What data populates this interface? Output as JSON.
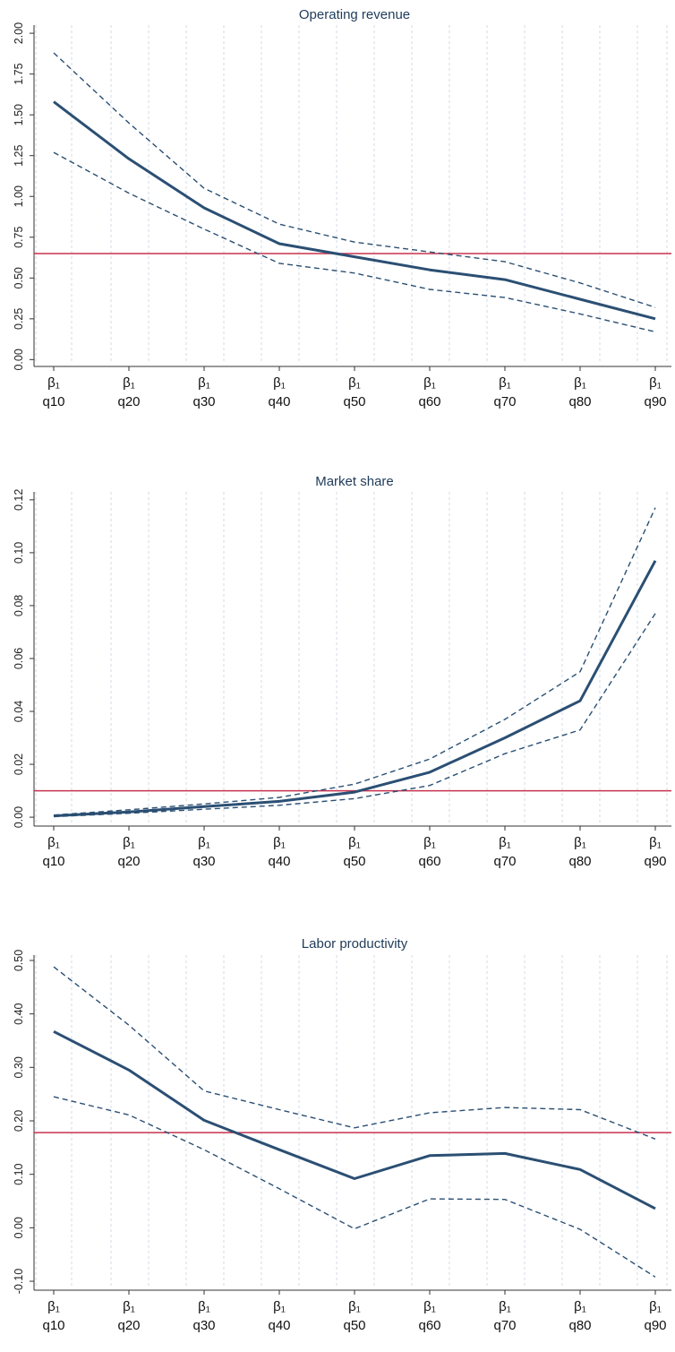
{
  "colors": {
    "estimate": "#2b4f73",
    "ci": "#2b4f73",
    "reference": "#c8324f",
    "grid": "#d0dbe6",
    "axis": "#333333"
  },
  "chart_data": [
    {
      "type": "line",
      "title": "Operating revenue",
      "categories": [
        "q10",
        "q20",
        "q30",
        "q40",
        "q50",
        "q60",
        "q70",
        "q80",
        "q90"
      ],
      "tick_symbol": "β₁",
      "ylim": [
        -0.02,
        2.05
      ],
      "yticks": [
        0.0,
        0.25,
        0.5,
        0.75,
        1.0,
        1.25,
        1.5,
        1.75,
        2.0
      ],
      "ytick_labels": [
        "0.00",
        "0.25",
        "0.50",
        "0.75",
        "1.00",
        "1.25",
        "1.50",
        "1.75",
        "2.00"
      ],
      "reference_line": 0.65,
      "grid": "vertical-dashed",
      "series": [
        {
          "role": "estimate",
          "style": "solid",
          "values": [
            1.58,
            1.23,
            0.93,
            0.71,
            0.63,
            0.55,
            0.49,
            0.37,
            0.25
          ]
        },
        {
          "role": "upper",
          "style": "dashed",
          "values": [
            1.88,
            1.45,
            1.05,
            0.83,
            0.72,
            0.66,
            0.6,
            0.47,
            0.32
          ]
        },
        {
          "role": "lower",
          "style": "dashed",
          "values": [
            1.27,
            1.02,
            0.8,
            0.59,
            0.53,
            0.43,
            0.38,
            0.28,
            0.17
          ]
        }
      ]
    },
    {
      "type": "line",
      "title": "Market share",
      "categories": [
        "q10",
        "q20",
        "q30",
        "q40",
        "q50",
        "q60",
        "q70",
        "q80",
        "q90"
      ],
      "tick_symbol": "β₁",
      "ylim": [
        -0.002,
        0.123
      ],
      "yticks": [
        0.0,
        0.02,
        0.04,
        0.06,
        0.08,
        0.1,
        0.12
      ],
      "ytick_labels": [
        "0.00",
        "0.02",
        "0.04",
        "0.06",
        "0.08",
        "0.10",
        "0.12"
      ],
      "reference_line": 0.01,
      "grid": "vertical-dashed",
      "series": [
        {
          "role": "estimate",
          "style": "solid",
          "values": [
            0.0005,
            0.002,
            0.004,
            0.006,
            0.0095,
            0.017,
            0.03,
            0.044,
            0.097
          ]
        },
        {
          "role": "upper",
          "style": "dashed",
          "values": [
            0.0008,
            0.0028,
            0.005,
            0.0075,
            0.0125,
            0.022,
            0.037,
            0.055,
            0.117
          ]
        },
        {
          "role": "lower",
          "style": "dashed",
          "values": [
            0.0002,
            0.0015,
            0.003,
            0.0045,
            0.007,
            0.012,
            0.024,
            0.033,
            0.077
          ]
        }
      ]
    },
    {
      "type": "line",
      "title": "Labor productivity",
      "categories": [
        "q10",
        "q20",
        "q30",
        "q40",
        "q50",
        "q60",
        "q70",
        "q80",
        "q90"
      ],
      "tick_symbol": "β₁",
      "ylim": [
        -0.11,
        0.51
      ],
      "yticks": [
        -0.1,
        0.0,
        0.1,
        0.2,
        0.3,
        0.4,
        0.5
      ],
      "ytick_labels": [
        "-0.10",
        "0.00",
        "0.10",
        "0.20",
        "0.30",
        "0.40",
        "0.50"
      ],
      "reference_line": 0.178,
      "grid": "vertical-dashed",
      "series": [
        {
          "role": "estimate",
          "style": "solid",
          "values": [
            0.367,
            0.295,
            0.201,
            0.146,
            0.092,
            0.135,
            0.139,
            0.109,
            0.036
          ]
        },
        {
          "role": "upper",
          "style": "dashed",
          "values": [
            0.488,
            0.379,
            0.256,
            0.221,
            0.187,
            0.215,
            0.225,
            0.221,
            0.166
          ]
        },
        {
          "role": "lower",
          "style": "dashed",
          "values": [
            0.245,
            0.211,
            0.146,
            0.073,
            -0.002,
            0.054,
            0.053,
            -0.003,
            -0.092
          ]
        }
      ]
    }
  ]
}
